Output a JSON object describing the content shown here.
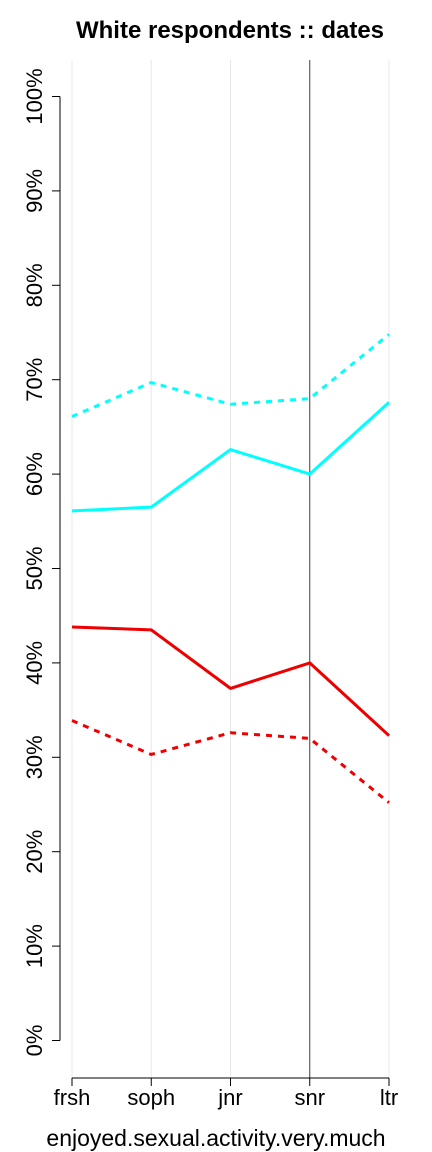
{
  "chart_data": {
    "type": "line",
    "title": "White respondents :: dates",
    "xlabel": "enjoyed.sexual.activity.very.much",
    "ylabel": "",
    "categories": [
      "frsh",
      "soph",
      "jnr",
      "snr",
      "ltr"
    ],
    "ylim": [
      0,
      100
    ],
    "y_ticks": [
      "0%",
      "10%",
      "20%",
      "30%",
      "40%",
      "50%",
      "60%",
      "70%",
      "80%",
      "90%",
      "100%"
    ],
    "y_tick_values": [
      0,
      10,
      20,
      30,
      40,
      50,
      60,
      70,
      80,
      90,
      100
    ],
    "reference_line_category": "snr",
    "grid": "vertical",
    "series": [
      {
        "color": "#00FFFF",
        "dash": "solid",
        "values": [
          56.1,
          56.5,
          62.6,
          60.0,
          67.6
        ]
      },
      {
        "color": "#00FFFF",
        "dash": "dashed",
        "values": [
          66.1,
          69.7,
          67.4,
          68.0,
          74.8
        ]
      },
      {
        "color": "#EE0000",
        "dash": "solid",
        "values": [
          43.8,
          43.5,
          37.3,
          40.0,
          32.3
        ]
      },
      {
        "color": "#EE0000",
        "dash": "dashed",
        "values": [
          33.9,
          30.3,
          32.6,
          32.0,
          25.2
        ]
      }
    ]
  }
}
